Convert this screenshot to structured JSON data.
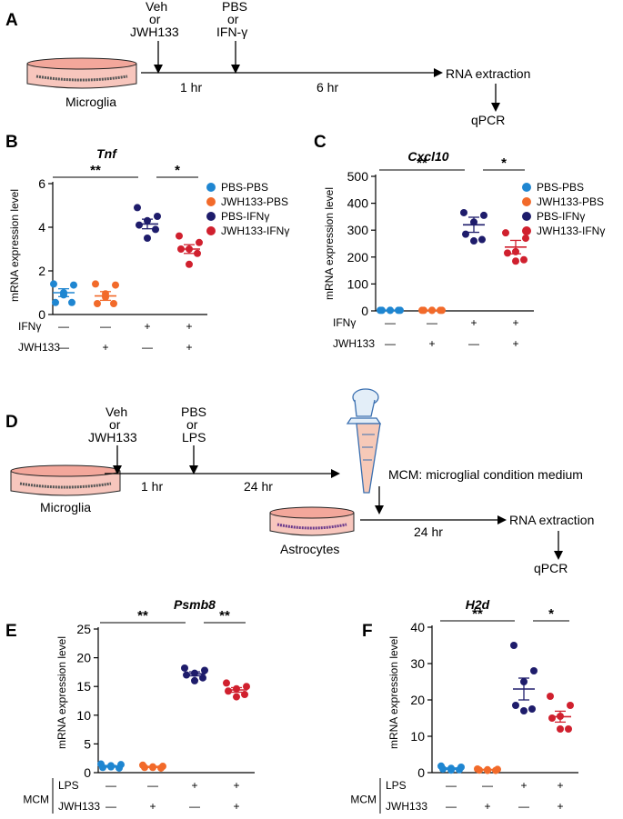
{
  "figure": {
    "panels": {
      "A": {
        "label": "A",
        "veh_line1": "Veh",
        "veh_line2": "or",
        "veh_line3": "JWH133",
        "pbs_line1": "PBS",
        "pbs_line2": "or",
        "pbs_line3": "IFN-γ",
        "dish_label": "Microglia",
        "time1": "1 hr",
        "time2": "6 hr",
        "rna": "RNA extraction",
        "qpcr": "qPCR"
      },
      "D": {
        "label": "D",
        "veh_line1": "Veh",
        "veh_line2": "or",
        "veh_line3": "JWH133",
        "pbs_line1": "PBS",
        "pbs_line2": "or",
        "pbs_line3": "LPS",
        "dish_label": "Microglia",
        "time1": "1 hr",
        "time2": "24 hr",
        "mcm_text": "MCM: microglial condition medium",
        "astro_label": "Astrocytes",
        "time3": "24 hr",
        "rna": "RNA extraction",
        "qpcr": "qPCR"
      }
    },
    "legend": {
      "PBS-PBS": "PBS-PBS",
      "JWH133-PBS": "JWH133-PBS",
      "PBS-IFNy": "PBS-IFNγ",
      "JWH133-IFNy": "JWH133-IFNγ"
    },
    "colors": {
      "PBS-PBS": "#1f86d1",
      "JWH133-PBS": "#f26a2a",
      "PBS-IFNy": "#1e1c6b",
      "JWH133-IFNy": "#d0202e"
    },
    "conditions": {
      "plus": "+",
      "minus": "—",
      "mcm": "MCM"
    }
  },
  "chart_data": [
    {
      "panel": "B",
      "type": "scatter",
      "title": "Tnf",
      "ylabel": "mRNA expression level",
      "ylim": [
        0,
        6
      ],
      "yticks": [
        0,
        2,
        4,
        6
      ],
      "groups": [
        "PBS-PBS",
        "JWH133-PBS",
        "PBS-IFNy",
        "JWH133-IFNy"
      ],
      "points": [
        [
          1.4,
          1.35,
          0.9,
          0.55,
          0.55,
          1.0
        ],
        [
          1.4,
          1.35,
          0.95,
          0.5,
          0.5,
          0.8
        ],
        [
          4.9,
          4.5,
          4.3,
          4.1,
          3.9,
          3.5
        ],
        [
          3.6,
          3.3,
          3.0,
          3.0,
          2.8,
          2.3
        ]
      ],
      "mean": [
        1.0,
        0.85,
        4.15,
        3.0
      ],
      "sem": [
        0.18,
        0.2,
        0.22,
        0.2
      ],
      "conditions": [
        {
          "name": "IFNγ",
          "values": [
            "—",
            "—",
            "+",
            "+"
          ]
        },
        {
          "name": "JWH133",
          "values": [
            "—",
            "+",
            "—",
            "+"
          ]
        }
      ],
      "significance": [
        {
          "from": 0,
          "to": 2,
          "label": "**"
        },
        {
          "from": 2,
          "to": 3,
          "label": "*"
        }
      ]
    },
    {
      "panel": "C",
      "type": "scatter",
      "title": "Cxcl10",
      "ylabel": "mRNA expression level",
      "ylim": [
        0,
        500
      ],
      "yticks": [
        0,
        100,
        200,
        300,
        400,
        500
      ],
      "groups": [
        "PBS-PBS",
        "JWH133-PBS",
        "PBS-IFNy",
        "JWH133-IFNy"
      ],
      "points": [
        [
          2,
          2,
          2,
          2,
          2,
          2
        ],
        [
          2,
          2,
          2,
          2,
          2,
          2
        ],
        [
          365,
          355,
          330,
          285,
          265,
          260
        ],
        [
          290,
          270,
          220,
          215,
          190,
          185
        ]
      ],
      "mean": [
        2,
        2,
        320,
        237
      ],
      "sem": [
        0.5,
        0.5,
        28,
        25
      ],
      "conditions": [
        {
          "name": "IFNγ",
          "values": [
            "—",
            "—",
            "+",
            "+"
          ]
        },
        {
          "name": "JWH133",
          "values": [
            "—",
            "+",
            "—",
            "+"
          ]
        }
      ],
      "significance": [
        {
          "from": 0,
          "to": 2,
          "label": "**"
        },
        {
          "from": 2,
          "to": 3,
          "label": "*"
        }
      ]
    },
    {
      "panel": "E",
      "type": "scatter",
      "title": "Psmb8",
      "ylabel": "mRNA expression level",
      "ylim": [
        0,
        25
      ],
      "yticks": [
        0,
        5,
        10,
        15,
        20,
        25
      ],
      "groups": [
        "PBS-PBS",
        "JWH133-PBS",
        "PBS-IFNy",
        "JWH133-IFNy"
      ],
      "points": [
        [
          1.5,
          1.4,
          1.2,
          0.9,
          0.8,
          1.0
        ],
        [
          1.3,
          1.1,
          1.0,
          0.9,
          0.8,
          0.9
        ],
        [
          18.2,
          17.8,
          17.3,
          17.0,
          16.5,
          16.0
        ],
        [
          15.6,
          15.0,
          14.6,
          14.2,
          13.6,
          13.2
        ]
      ],
      "mean": [
        1.1,
        1.0,
        17.2,
        14.4
      ],
      "sem": [
        0.15,
        0.1,
        0.35,
        0.4
      ],
      "conditions": [
        {
          "name": "LPS",
          "values": [
            "—",
            "—",
            "+",
            "+"
          ]
        },
        {
          "name": "JWH133",
          "values": [
            "—",
            "+",
            "—",
            "+"
          ]
        }
      ],
      "significance": [
        {
          "from": 0,
          "to": 2,
          "label": "**"
        },
        {
          "from": 2,
          "to": 3,
          "label": "**"
        }
      ]
    },
    {
      "panel": "F",
      "type": "scatter",
      "title": "H2d",
      "ylabel": "mRNA expression level",
      "ylim": [
        0,
        40
      ],
      "yticks": [
        0,
        10,
        20,
        30,
        40
      ],
      "groups": [
        "PBS-PBS",
        "JWH133-PBS",
        "PBS-IFNy",
        "JWH133-IFNy"
      ],
      "points": [
        [
          1.8,
          1.5,
          1.2,
          1.0,
          0.8,
          0.7
        ],
        [
          1.0,
          0.9,
          0.8,
          0.7,
          0.6,
          0.6
        ],
        [
          35.0,
          28.0,
          25.0,
          18.5,
          17.5,
          17.0
        ],
        [
          21.0,
          18.5,
          15.5,
          15.0,
          12.0,
          12.0
        ]
      ],
      "mean": [
        1.1,
        0.8,
        23.0,
        15.4
      ],
      "sem": [
        0.2,
        0.1,
        3.0,
        1.5
      ],
      "conditions": [
        {
          "name": "LPS",
          "values": [
            "—",
            "—",
            "+",
            "+"
          ]
        },
        {
          "name": "JWH133",
          "values": [
            "—",
            "+",
            "—",
            "+"
          ]
        }
      ],
      "significance": [
        {
          "from": 0,
          "to": 2,
          "label": "**"
        },
        {
          "from": 2,
          "to": 3,
          "label": "*"
        }
      ]
    }
  ]
}
